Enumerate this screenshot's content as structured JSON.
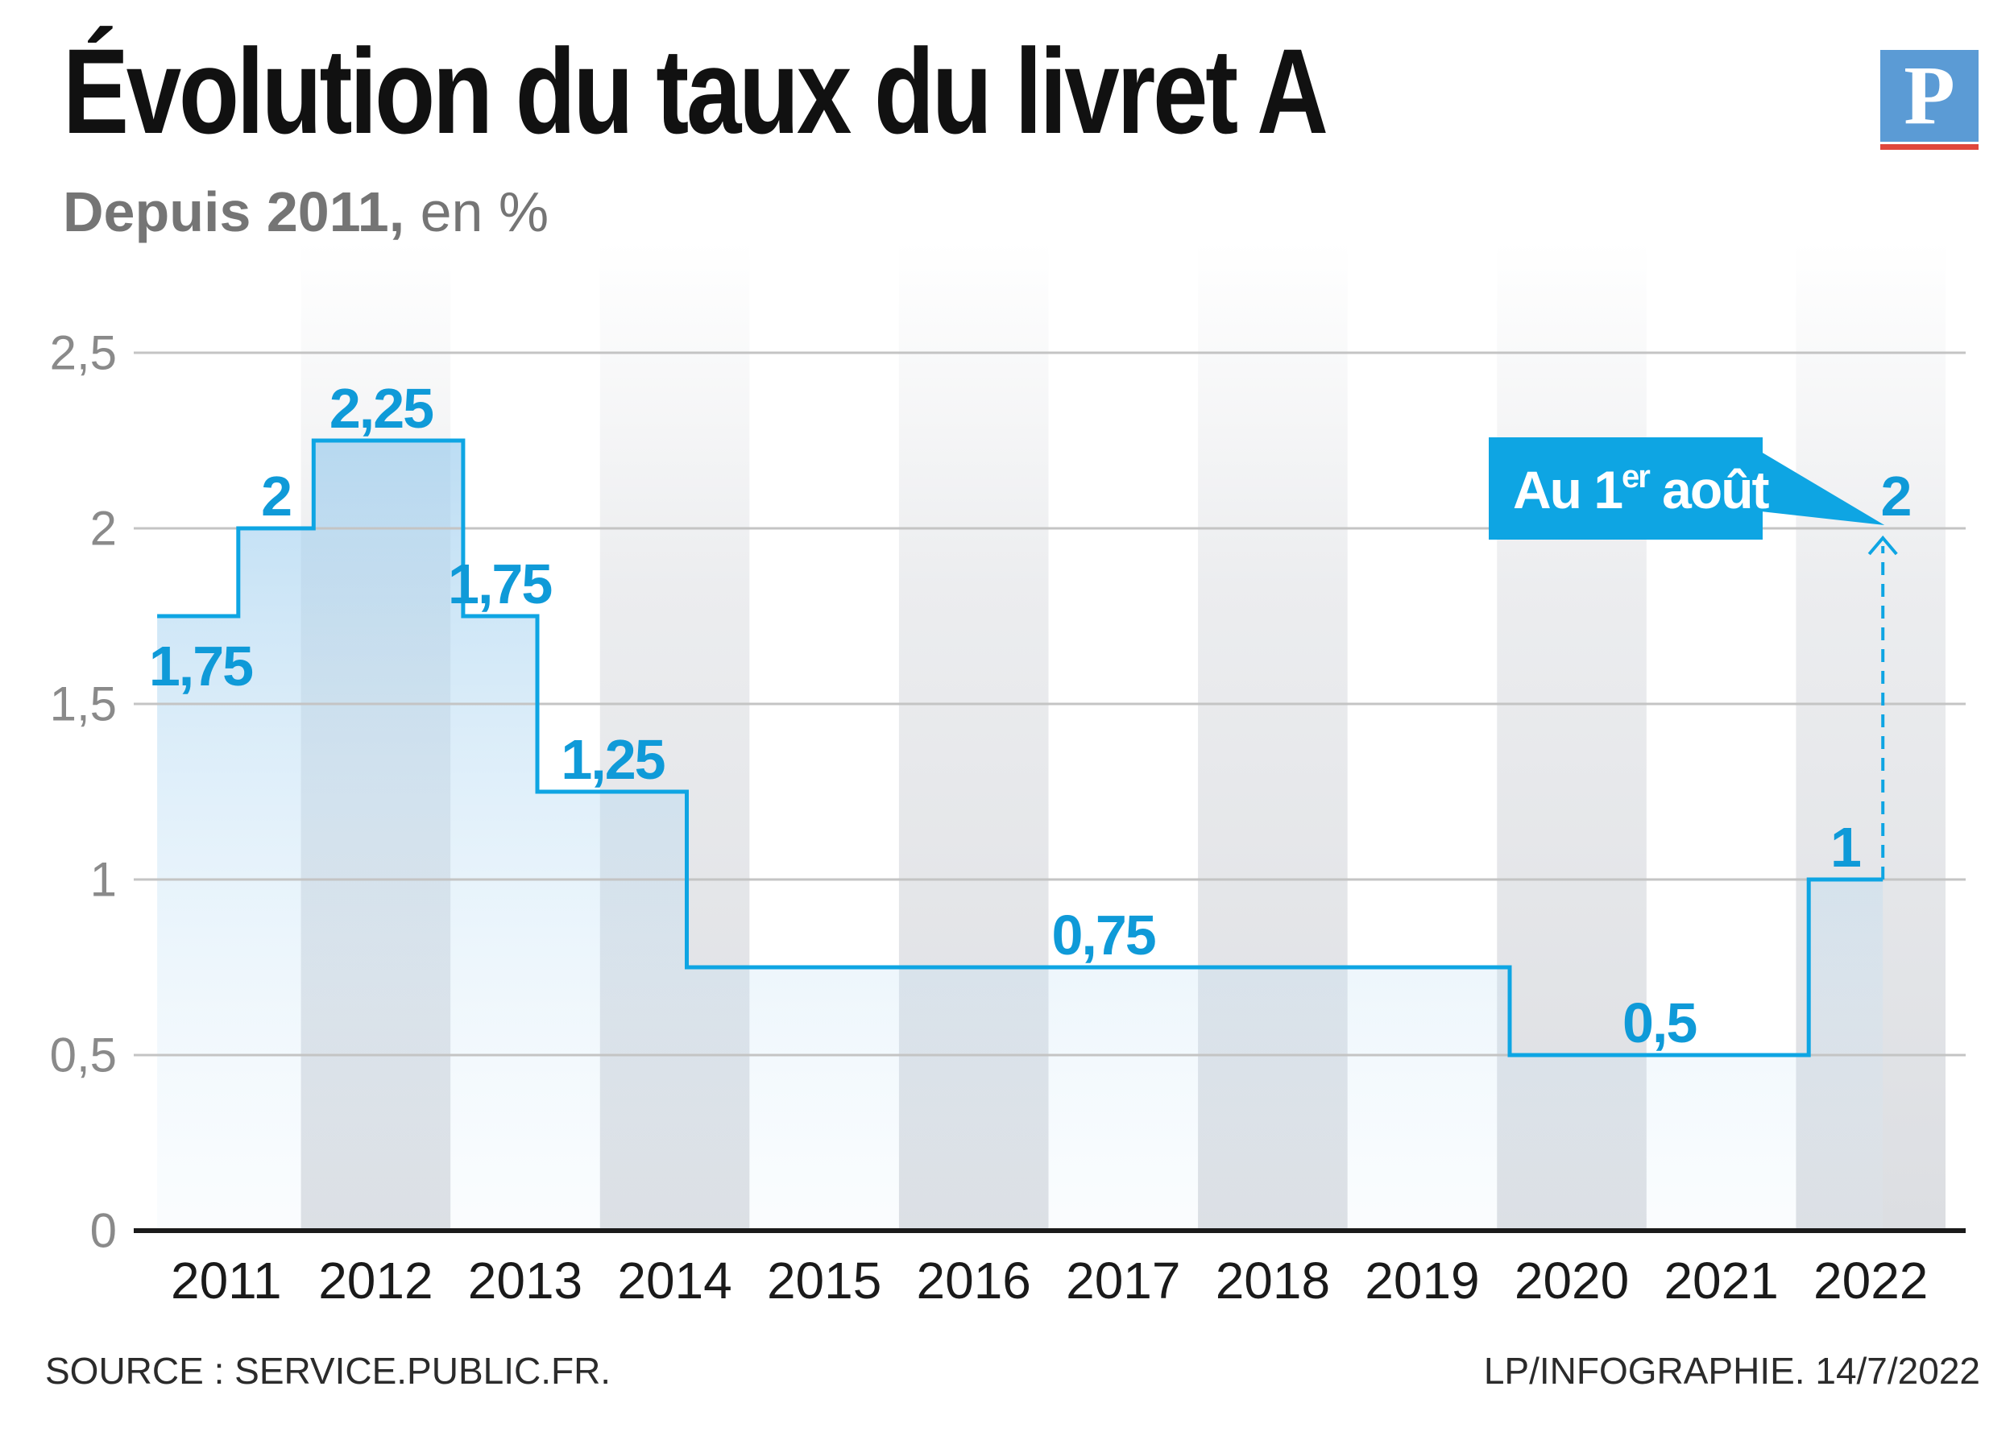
{
  "header": {
    "title": "Évolution du taux du livret A",
    "subtitle_bold": "Depuis 2011,",
    "subtitle_rest": " en %",
    "logo_letter": "P"
  },
  "colors": {
    "accent": "#0ea5e3",
    "label": "#0f9ad8",
    "grid": "#c4c4c4",
    "axis": "#1a1a1a",
    "tick": "#8a8a8a",
    "band": "#dcdee2",
    "title": "#111111",
    "subtitle": "#757575",
    "logo_bg": "#5b9bd5",
    "logo_bar": "#e0473c"
  },
  "chart_data": {
    "type": "area",
    "step": true,
    "title": "Évolution du taux du livret A",
    "subtitle": "Depuis 2011, en %",
    "xlabel": "",
    "ylabel": "",
    "ylim": [
      0,
      2.5
    ],
    "yticks": [
      0,
      0.5,
      1,
      1.5,
      2,
      2.5
    ],
    "ytick_labels": [
      "0",
      "0,5",
      "1",
      "1,5",
      "2",
      "2,5"
    ],
    "xlim": [
      "2011-01-01",
      "2023-01-01"
    ],
    "categories": [
      "2011",
      "2012",
      "2013",
      "2014",
      "2015",
      "2016",
      "2017",
      "2018",
      "2019",
      "2020",
      "2021",
      "2022"
    ],
    "grid": true,
    "legend": "none",
    "series": [
      {
        "points": [
          {
            "date": "2011-01-15",
            "value": 1.75
          },
          {
            "date": "2011-08-01",
            "value": 2
          },
          {
            "date": "2012-02-01",
            "value": 2.25
          },
          {
            "date": "2013-02-01",
            "value": 1.75
          },
          {
            "date": "2013-08-01",
            "value": 1.25
          },
          {
            "date": "2014-08-01",
            "value": 0.75
          },
          {
            "date": "2020-02-01",
            "value": 0.5
          },
          {
            "date": "2022-02-01",
            "value": 1
          }
        ],
        "end_date": "2022-08-01"
      }
    ],
    "projection": {
      "date": "2022-08-01",
      "from": 1,
      "to": 2
    },
    "data_labels": [
      {
        "text": "1,75",
        "date": "2011-05-01",
        "value": 1.75
      },
      {
        "text": "2",
        "date": "2011-11-01",
        "value": 2
      },
      {
        "text": "2,25",
        "date": "2012-07-15",
        "value": 2.25
      },
      {
        "text": "1,75",
        "date": "2013-05-01",
        "value": 1.75
      },
      {
        "text": "1,25",
        "date": "2014-02-01",
        "value": 1.25
      },
      {
        "text": "0,75",
        "date": "2017-05-15",
        "value": 0.75
      },
      {
        "text": "0,5",
        "date": "2021-02-01",
        "value": 0.5
      },
      {
        "text": "1",
        "date": "2022-05-01",
        "value": 1
      },
      {
        "text": "2",
        "date": "2022-09-01",
        "value": 2
      }
    ],
    "annotations": [
      {
        "text_main": "Au 1",
        "text_sup": "er",
        "text_end": " août",
        "target_date": "2022-08-01",
        "target_value": 2
      }
    ]
  },
  "footer": {
    "source": "SOURCE : SERVICE.PUBLIC.FR.",
    "credit": "LP/INFOGRAPHIE. 14/7/2022"
  }
}
